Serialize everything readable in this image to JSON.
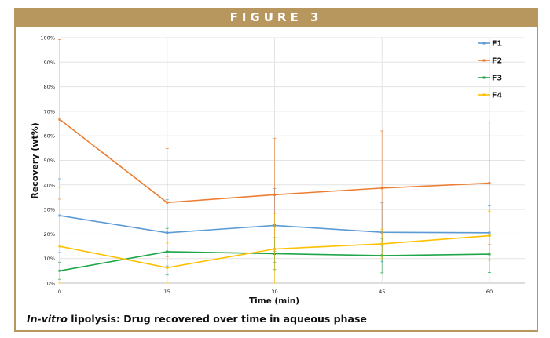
{
  "figure_label": "FIGURE 3",
  "caption": {
    "italic": "In-vitro",
    "rest": " lipolysis: Drug recovered over time in aqueous phase"
  },
  "chart_data": {
    "type": "line",
    "title": "",
    "xlabel": "Time (min)",
    "ylabel": "Recovery (wt%)",
    "x": [
      0,
      15,
      30,
      45,
      60
    ],
    "xticks": [
      "0",
      "15",
      "30",
      "45",
      "60"
    ],
    "xlim": [
      0,
      65
    ],
    "ylim": [
      0,
      100
    ],
    "yticks": [
      "0%",
      "10%",
      "20%",
      "30%",
      "40%",
      "50%",
      "60%",
      "70%",
      "80%",
      "90%",
      "100%"
    ],
    "grid": true,
    "legend_position": "top-right",
    "series": [
      {
        "name": "F1",
        "color": "#5b9bd5",
        "values": [
          27.5,
          20.5,
          23.5,
          20.7,
          20.5
        ],
        "errors": [
          15,
          13.5,
          15,
          12,
          11
        ]
      },
      {
        "name": "F2",
        "color": "#ed7d31",
        "values": [
          66.7,
          32.8,
          36,
          38.7,
          40.7
        ],
        "errors": [
          32.5,
          22,
          23,
          23.3,
          25
        ]
      },
      {
        "name": "F3",
        "color": "#1fa64a",
        "values": [
          5,
          12.8,
          12,
          11.2,
          11.8
        ],
        "errors": [
          3.5,
          9.5,
          6.5,
          7,
          7.5
        ]
      },
      {
        "name": "F4",
        "color": "#ffc000",
        "values": [
          15,
          6.3,
          13.9,
          16,
          19.3
        ],
        "errors": [
          24,
          10,
          14.5,
          6,
          10
        ]
      }
    ]
  }
}
